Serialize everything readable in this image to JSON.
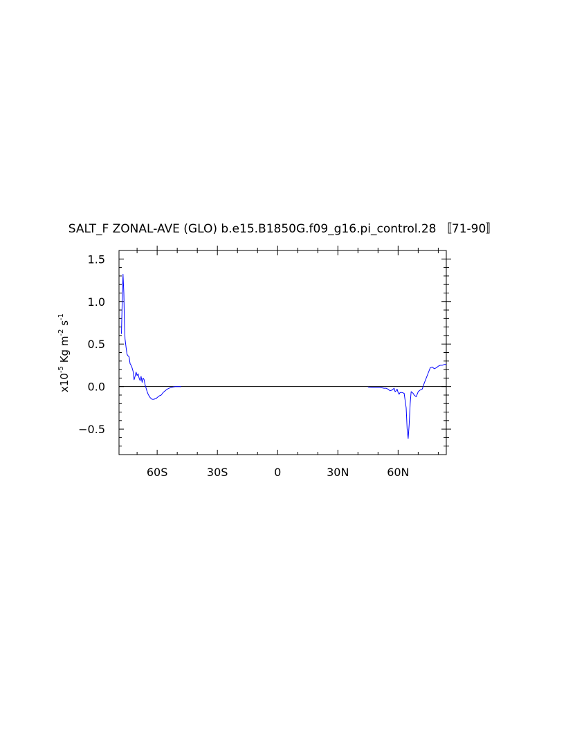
{
  "chart_data": {
    "type": "line",
    "title": "SALT_F ZONAL-AVE (GLO) b.e15.B1850G.f09_g16.pi_control.28 〚71-90〛",
    "xlabel": "",
    "ylabel": {
      "prefix": "x10",
      "exp": "-5",
      "unit1": " Kg m",
      "exp2": "-2",
      "unit2": " s",
      "exp3": "-1"
    },
    "xlim": [
      -79,
      84
    ],
    "ylim": [
      -0.8,
      1.6
    ],
    "x_ticks": [
      {
        "value": -60,
        "label": "60S"
      },
      {
        "value": -30,
        "label": "30S"
      },
      {
        "value": 0,
        "label": "0"
      },
      {
        "value": 30,
        "label": "30N"
      },
      {
        "value": 60,
        "label": "60N"
      }
    ],
    "y_ticks": [
      {
        "value": 1.5,
        "label": "1.5"
      },
      {
        "value": 1.0,
        "label": "1.0"
      },
      {
        "value": 0.5,
        "label": "0.5"
      },
      {
        "value": 0.0,
        "label": "0.0"
      },
      {
        "value": -0.5,
        "label": "−0.5"
      }
    ],
    "reference_line": 0,
    "line_color": "#0000ff",
    "series": [
      {
        "segments": [
          {
            "x": [
              -77.8,
              -77.4,
              -77.0,
              -76.6,
              -76.3,
              -76.0,
              -75.5,
              -75.0,
              -74.5,
              -74.0,
              -73.5,
              -73.0,
              -72.5,
              -72.0,
              -71.5,
              -71.0,
              -70.5,
              -70.0,
              -69.5,
              -69.0,
              -68.5,
              -68.0,
              -67.5,
              -67.0,
              -66.5,
              -66.0,
              -65.5,
              -65.0,
              -64.5,
              -64.0,
              -63.5,
              -63.0,
              -62.5,
              -62.0,
              -61.5,
              -61.0,
              -60.5,
              -60.0,
              -59.0,
              -58.0,
              -57.0,
              -56.0,
              -55.0,
              -54.0,
              -53.0,
              -52.0,
              -51.0,
              -50.0,
              -49.0,
              -48.0
            ],
            "y": [
              0.62,
              1.0,
              1.32,
              1.1,
              0.75,
              0.56,
              0.46,
              0.38,
              0.36,
              0.35,
              0.27,
              0.25,
              0.22,
              0.18,
              0.08,
              0.12,
              0.17,
              0.13,
              0.15,
              0.1,
              0.07,
              0.12,
              0.05,
              0.1,
              0.08,
              0.02,
              -0.02,
              -0.06,
              -0.09,
              -0.11,
              -0.13,
              -0.14,
              -0.15,
              -0.15,
              -0.15,
              -0.14,
              -0.14,
              -0.13,
              -0.11,
              -0.1,
              -0.07,
              -0.05,
              -0.03,
              -0.02,
              -0.01,
              -0.005,
              0.0,
              0.0,
              0.0,
              0.0
            ]
          },
          {
            "x": [
              45,
              47,
              49,
              51,
              52,
              53,
              54,
              55,
              56,
              57,
              58,
              58.5,
              59,
              59.5,
              60,
              60.5,
              61,
              62,
              63,
              64,
              64.5,
              65,
              65.5,
              66,
              66.5,
              67,
              67.5,
              68,
              69,
              70,
              71,
              72,
              73,
              74,
              75,
              76,
              77,
              78,
              79,
              80,
              81,
              82,
              83,
              84
            ],
            "y": [
              -0.005,
              -0.01,
              -0.01,
              -0.01,
              -0.015,
              -0.02,
              -0.02,
              -0.03,
              -0.05,
              -0.04,
              -0.02,
              -0.06,
              -0.05,
              -0.03,
              -0.07,
              -0.09,
              -0.07,
              -0.07,
              -0.08,
              -0.25,
              -0.5,
              -0.61,
              -0.45,
              -0.2,
              -0.06,
              -0.07,
              -0.08,
              -0.1,
              -0.12,
              -0.06,
              -0.04,
              -0.03,
              0.04,
              0.1,
              0.16,
              0.22,
              0.23,
              0.21,
              0.22,
              0.24,
              0.25,
              0.25,
              0.26,
              0.26
            ]
          }
        ]
      }
    ]
  }
}
